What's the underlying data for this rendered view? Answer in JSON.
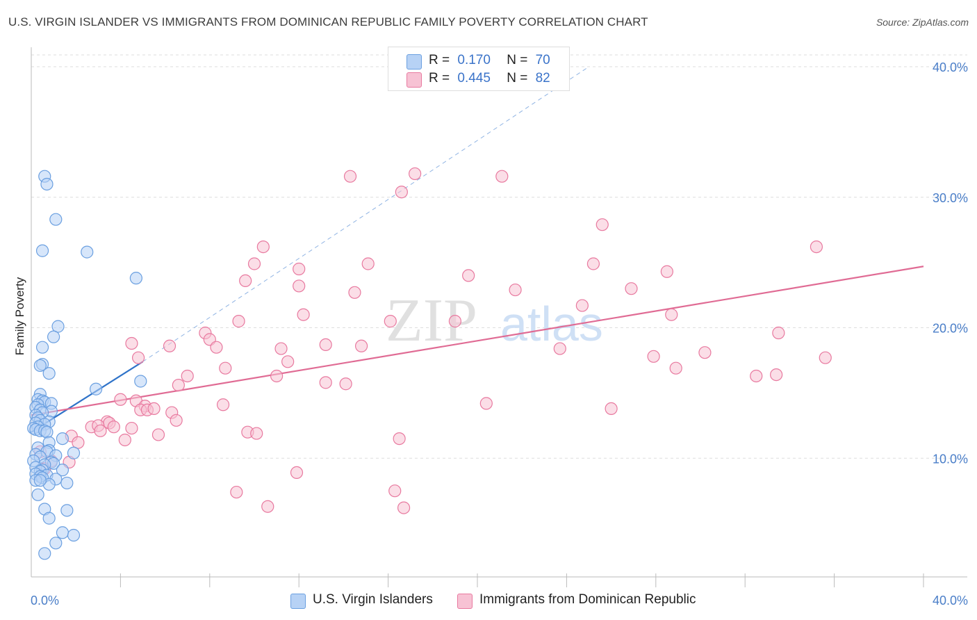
{
  "title": "U.S. VIRGIN ISLANDER VS IMMIGRANTS FROM DOMINICAN REPUBLIC FAMILY POVERTY CORRELATION CHART",
  "source": "Source: ZipAtlas.com",
  "watermark": {
    "zip": "ZIP",
    "atlas": "atlas"
  },
  "colors": {
    "blue": "#6a9fe0",
    "blue_fill": "#b7d2f5",
    "pink": "#e8799f",
    "pink_fill": "#f7c2d4",
    "blue_line": "#2f73c9",
    "pink_line": "#e06b94",
    "accent_text": "#3a73c9"
  },
  "legend": {
    "blue": {
      "r_label": "R =",
      "r_value": "0.170",
      "n_label": "N =",
      "n_value": "70"
    },
    "pink": {
      "r_label": "R =",
      "r_value": "0.445",
      "n_label": "N =",
      "n_value": "82"
    }
  },
  "bottom_legend": {
    "blue": "U.S. Virgin Islanders",
    "pink": "Immigrants from Dominican Republic"
  },
  "chart_data": {
    "type": "scatter",
    "title": "U.S. VIRGIN ISLANDER VS IMMIGRANTS FROM DOMINICAN REPUBLIC FAMILY POVERTY CORRELATION CHART",
    "xlabel": "",
    "ylabel": "Family Poverty",
    "xlim": [
      0,
      0.42
    ],
    "ylim": [
      0,
      0.41
    ],
    "x_tick_labels": {
      "left": "0.0%",
      "right": "40.0%"
    },
    "y_ticks": [
      0.1,
      0.2,
      0.3,
      0.4
    ],
    "y_tick_labels": [
      "10.0%",
      "20.0%",
      "30.0%",
      "40.0%"
    ],
    "series": [
      {
        "name": "U.S. Virgin Islanders",
        "color": "blue",
        "points": [
          [
            0.006,
            0.316
          ],
          [
            0.007,
            0.31
          ],
          [
            0.011,
            0.283
          ],
          [
            0.005,
            0.259
          ],
          [
            0.025,
            0.258
          ],
          [
            0.047,
            0.238
          ],
          [
            0.012,
            0.201
          ],
          [
            0.01,
            0.193
          ],
          [
            0.005,
            0.185
          ],
          [
            0.005,
            0.172
          ],
          [
            0.004,
            0.171
          ],
          [
            0.008,
            0.165
          ],
          [
            0.049,
            0.159
          ],
          [
            0.029,
            0.153
          ],
          [
            0.004,
            0.149
          ],
          [
            0.003,
            0.145
          ],
          [
            0.005,
            0.144
          ],
          [
            0.006,
            0.143
          ],
          [
            0.009,
            0.142
          ],
          [
            0.003,
            0.141
          ],
          [
            0.002,
            0.139
          ],
          [
            0.004,
            0.137
          ],
          [
            0.009,
            0.136
          ],
          [
            0.005,
            0.135
          ],
          [
            0.002,
            0.133
          ],
          [
            0.003,
            0.131
          ],
          [
            0.004,
            0.129
          ],
          [
            0.008,
            0.128
          ],
          [
            0.002,
            0.127
          ],
          [
            0.006,
            0.126
          ],
          [
            0.003,
            0.124
          ],
          [
            0.001,
            0.123
          ],
          [
            0.002,
            0.122
          ],
          [
            0.004,
            0.121
          ],
          [
            0.006,
            0.121
          ],
          [
            0.007,
            0.12
          ],
          [
            0.014,
            0.115
          ],
          [
            0.008,
            0.112
          ],
          [
            0.003,
            0.108
          ],
          [
            0.008,
            0.106
          ],
          [
            0.007,
            0.105
          ],
          [
            0.019,
            0.104
          ],
          [
            0.002,
            0.103
          ],
          [
            0.011,
            0.102
          ],
          [
            0.004,
            0.101
          ],
          [
            0.001,
            0.098
          ],
          [
            0.009,
            0.097
          ],
          [
            0.01,
            0.096
          ],
          [
            0.006,
            0.095
          ],
          [
            0.002,
            0.093
          ],
          [
            0.005,
            0.091
          ],
          [
            0.014,
            0.091
          ],
          [
            0.004,
            0.09
          ],
          [
            0.002,
            0.088
          ],
          [
            0.007,
            0.087
          ],
          [
            0.004,
            0.086
          ],
          [
            0.005,
            0.085
          ],
          [
            0.011,
            0.084
          ],
          [
            0.002,
            0.083
          ],
          [
            0.016,
            0.081
          ],
          [
            0.008,
            0.08
          ],
          [
            0.003,
            0.072
          ],
          [
            0.006,
            0.061
          ],
          [
            0.016,
            0.06
          ],
          [
            0.008,
            0.054
          ],
          [
            0.014,
            0.043
          ],
          [
            0.019,
            0.041
          ],
          [
            0.011,
            0.035
          ],
          [
            0.006,
            0.027
          ],
          [
            0.004,
            0.083
          ]
        ]
      },
      {
        "name": "Immigrants from Dominican Republic",
        "color": "pink",
        "points": [
          [
            0.172,
            0.318
          ],
          [
            0.143,
            0.316
          ],
          [
            0.211,
            0.316
          ],
          [
            0.166,
            0.304
          ],
          [
            0.256,
            0.279
          ],
          [
            0.352,
            0.262
          ],
          [
            0.104,
            0.262
          ],
          [
            0.1,
            0.249
          ],
          [
            0.151,
            0.249
          ],
          [
            0.252,
            0.249
          ],
          [
            0.12,
            0.245
          ],
          [
            0.196,
            0.24
          ],
          [
            0.285,
            0.243
          ],
          [
            0.096,
            0.236
          ],
          [
            0.12,
            0.232
          ],
          [
            0.217,
            0.229
          ],
          [
            0.145,
            0.227
          ],
          [
            0.269,
            0.23
          ],
          [
            0.247,
            0.217
          ],
          [
            0.122,
            0.21
          ],
          [
            0.093,
            0.205
          ],
          [
            0.161,
            0.205
          ],
          [
            0.19,
            0.205
          ],
          [
            0.287,
            0.21
          ],
          [
            0.078,
            0.196
          ],
          [
            0.335,
            0.196
          ],
          [
            0.08,
            0.191
          ],
          [
            0.045,
            0.188
          ],
          [
            0.062,
            0.186
          ],
          [
            0.132,
            0.187
          ],
          [
            0.083,
            0.185
          ],
          [
            0.148,
            0.186
          ],
          [
            0.112,
            0.184
          ],
          [
            0.237,
            0.184
          ],
          [
            0.048,
            0.177
          ],
          [
            0.302,
            0.181
          ],
          [
            0.279,
            0.178
          ],
          [
            0.115,
            0.174
          ],
          [
            0.356,
            0.177
          ],
          [
            0.087,
            0.169
          ],
          [
            0.289,
            0.169
          ],
          [
            0.07,
            0.163
          ],
          [
            0.11,
            0.163
          ],
          [
            0.325,
            0.163
          ],
          [
            0.334,
            0.164
          ],
          [
            0.132,
            0.158
          ],
          [
            0.141,
            0.157
          ],
          [
            0.066,
            0.156
          ],
          [
            0.04,
            0.145
          ],
          [
            0.047,
            0.144
          ],
          [
            0.051,
            0.14
          ],
          [
            0.086,
            0.141
          ],
          [
            0.204,
            0.142
          ],
          [
            0.26,
            0.138
          ],
          [
            0.049,
            0.137
          ],
          [
            0.052,
            0.137
          ],
          [
            0.055,
            0.138
          ],
          [
            0.063,
            0.135
          ],
          [
            0.065,
            0.129
          ],
          [
            0.034,
            0.128
          ],
          [
            0.035,
            0.127
          ],
          [
            0.037,
            0.124
          ],
          [
            0.027,
            0.124
          ],
          [
            0.03,
            0.125
          ],
          [
            0.045,
            0.123
          ],
          [
            0.031,
            0.121
          ],
          [
            0.097,
            0.12
          ],
          [
            0.101,
            0.119
          ],
          [
            0.057,
            0.118
          ],
          [
            0.018,
            0.117
          ],
          [
            0.042,
            0.114
          ],
          [
            0.165,
            0.115
          ],
          [
            0.021,
            0.112
          ],
          [
            0.004,
            0.105
          ],
          [
            0.009,
            0.098
          ],
          [
            0.017,
            0.097
          ],
          [
            0.006,
            0.092
          ],
          [
            0.119,
            0.089
          ],
          [
            0.092,
            0.074
          ],
          [
            0.163,
            0.075
          ],
          [
            0.106,
            0.063
          ],
          [
            0.167,
            0.062
          ]
        ]
      }
    ],
    "trend_lines": [
      {
        "series": "U.S. Virgin Islanders",
        "style": "solid",
        "x": [
          0.0,
          0.05
        ],
        "y": [
          0.12,
          0.174
        ]
      },
      {
        "series": "U.S. Virgin Islanders",
        "style": "dashed",
        "x": [
          0.05,
          0.25
        ],
        "y": [
          0.174,
          0.4
        ]
      },
      {
        "series": "Immigrants from Dominican Republic",
        "style": "solid",
        "x": [
          0.0,
          0.4
        ],
        "y": [
          0.133,
          0.247
        ]
      }
    ]
  }
}
